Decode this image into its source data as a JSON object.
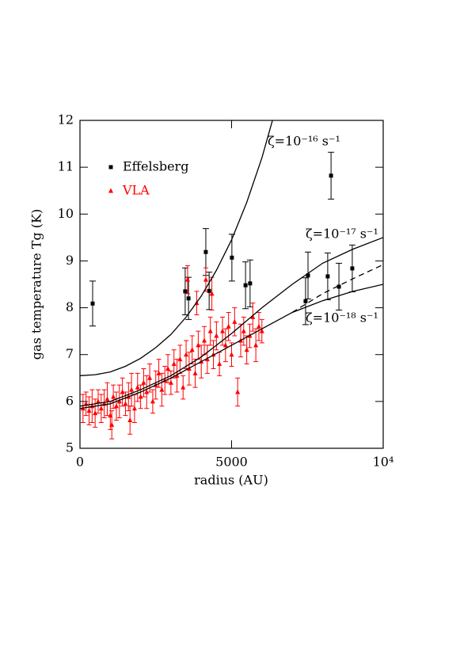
{
  "chart_data": {
    "type": "scatter",
    "xlabel": "radius (AU)",
    "ylabel": "gas temperature Tg (K)",
    "xlim": [
      0,
      10000
    ],
    "ylim": [
      5,
      12
    ],
    "xticks": [
      0,
      5000,
      {
        "value": 10000,
        "label": "10⁴"
      }
    ],
    "yticks": [
      5,
      6,
      7,
      8,
      9,
      10,
      11,
      12
    ],
    "annotations": [
      "ζ=10⁻¹⁶ s⁻¹",
      "ζ=10⁻¹⁷ s⁻¹",
      "ζ=10⁻¹⁸ s⁻¹"
    ],
    "series": [
      {
        "name": "Effelsberg",
        "color": "#000000",
        "mode": "markers",
        "marker": "square",
        "x": [
          418,
          3470,
          3580,
          4150,
          4260,
          5010,
          5460,
          5610,
          7440,
          7520,
          8170,
          8280,
          8540,
          8980
        ],
        "values": [
          8.09,
          8.35,
          8.2,
          9.19,
          8.36,
          9.07,
          8.48,
          8.52,
          8.14,
          8.69,
          8.67,
          10.82,
          8.45,
          8.84
        ],
        "errors": [
          0.48,
          0.5,
          0.45,
          0.5,
          0.4,
          0.5,
          0.5,
          0.5,
          0.5,
          0.5,
          0.5,
          0.5,
          0.5,
          0.5
        ]
      },
      {
        "name": "VLA",
        "color": "#ff0000",
        "mode": "markers",
        "marker": "triangle",
        "x": [
          100,
          200,
          300,
          400,
          500,
          600,
          700,
          800,
          900,
          1000,
          1050,
          1100,
          1200,
          1300,
          1400,
          1500,
          1600,
          1650,
          1700,
          1800,
          1900,
          2000,
          2100,
          2200,
          2300,
          2400,
          2500,
          2600,
          2700,
          2800,
          2900,
          3000,
          3100,
          3200,
          3300,
          3400,
          3500,
          3550,
          3600,
          3700,
          3800,
          3850,
          3900,
          4000,
          4100,
          4150,
          4200,
          4300,
          4350,
          4400,
          4500,
          4600,
          4700,
          4800,
          4900,
          5000,
          5100,
          5200,
          5300,
          5400,
          5500,
          5600,
          5700,
          5800,
          5900,
          6000
        ],
        "values": [
          5.85,
          5.95,
          5.8,
          5.9,
          5.75,
          6.0,
          5.85,
          5.95,
          6.05,
          5.7,
          5.5,
          6.1,
          5.9,
          6.0,
          6.2,
          5.95,
          6.1,
          5.6,
          6.25,
          5.85,
          6.3,
          6.1,
          6.4,
          6.2,
          6.5,
          6.0,
          6.35,
          6.6,
          6.25,
          6.45,
          6.7,
          6.4,
          6.8,
          6.55,
          6.9,
          6.3,
          7.0,
          8.6,
          6.7,
          7.1,
          6.6,
          8.1,
          7.2,
          6.85,
          7.3,
          8.6,
          6.9,
          7.5,
          8.3,
          7.0,
          7.4,
          6.8,
          7.5,
          7.2,
          7.6,
          7.0,
          7.7,
          6.2,
          7.3,
          7.5,
          7.1,
          7.4,
          7.8,
          7.2,
          7.6,
          7.5
        ],
        "errors": [
          0.3,
          0.25,
          0.3,
          0.35,
          0.3,
          0.25,
          0.3,
          0.3,
          0.35,
          0.3,
          0.3,
          0.25,
          0.3,
          0.35,
          0.3,
          0.25,
          0.3,
          0.3,
          0.35,
          0.3,
          0.3,
          0.25,
          0.3,
          0.35,
          0.3,
          0.25,
          0.3,
          0.3,
          0.35,
          0.3,
          0.3,
          0.25,
          0.3,
          0.35,
          0.3,
          0.25,
          0.3,
          0.3,
          0.35,
          0.3,
          0.3,
          0.25,
          0.3,
          0.35,
          0.3,
          0.25,
          0.3,
          0.3,
          0.35,
          0.3,
          0.3,
          0.25,
          0.3,
          0.35,
          0.3,
          0.25,
          0.3,
          0.3,
          0.35,
          0.3,
          0.3,
          0.25,
          0.3,
          0.35,
          0.3,
          0.25
        ]
      },
      {
        "color": "#000000",
        "mode": "lines",
        "dash": false,
        "x": [
          0,
          500,
          1000,
          1500,
          2000,
          2500,
          3000,
          3500,
          4000,
          4500,
          5000,
          5500,
          6000,
          6500
        ],
        "values": [
          6.55,
          6.57,
          6.63,
          6.75,
          6.92,
          7.15,
          7.43,
          7.8,
          8.25,
          8.8,
          9.45,
          10.25,
          11.2,
          12.35
        ]
      },
      {
        "color": "#000000",
        "mode": "lines",
        "dash": false,
        "x": [
          0,
          1000,
          2000,
          3000,
          4000,
          5000,
          6000,
          7000,
          8000,
          9000,
          10000
        ],
        "values": [
          5.9,
          6.0,
          6.25,
          6.55,
          6.95,
          7.45,
          8.0,
          8.5,
          8.95,
          9.25,
          9.5
        ]
      },
      {
        "color": "#000000",
        "mode": "lines",
        "dash": false,
        "x": [
          0,
          1000,
          2000,
          3000,
          4000,
          5000,
          6000,
          7000,
          8000,
          9000,
          10000
        ],
        "values": [
          5.85,
          5.95,
          6.2,
          6.5,
          6.85,
          7.2,
          7.55,
          7.9,
          8.15,
          8.35,
          8.5
        ]
      },
      {
        "color": "#000000",
        "mode": "lines",
        "dash": true,
        "x": [
          7000,
          8000,
          9000,
          10000
        ],
        "values": [
          7.9,
          8.3,
          8.62,
          8.92
        ]
      }
    ]
  }
}
